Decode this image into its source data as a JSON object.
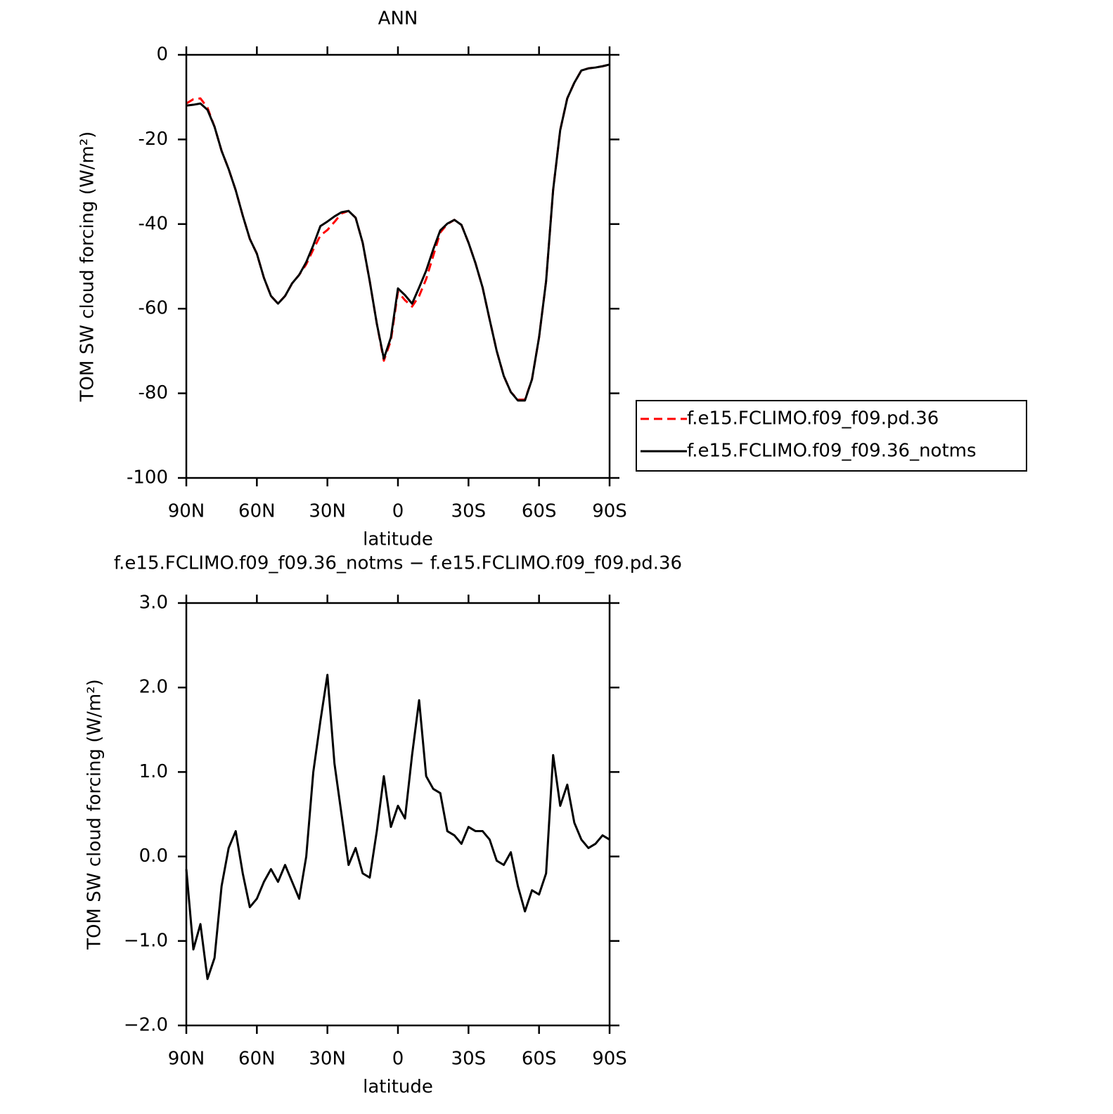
{
  "chart_data": [
    {
      "type": "line",
      "title": "ANN",
      "xlabel": "latitude",
      "ylabel": "TOM SW cloud forcing (W/m²)",
      "x": [
        90,
        87,
        84,
        81,
        78,
        75,
        72,
        69,
        66,
        63,
        60,
        57,
        54,
        51,
        48,
        45,
        42,
        39,
        36,
        33,
        30,
        27,
        24,
        21,
        18,
        15,
        12,
        9,
        6,
        3,
        0,
        -3,
        -6,
        -9,
        -12,
        -15,
        -18,
        -21,
        -24,
        -27,
        -30,
        -33,
        -36,
        -39,
        -42,
        -45,
        -48,
        -51,
        -54,
        -57,
        -60,
        -63,
        -66,
        -69,
        -72,
        -75,
        -78,
        -81,
        -84,
        -87,
        -90
      ],
      "xlim": [
        90,
        -90
      ],
      "xticks": [
        {
          "value": 90,
          "label": "90N"
        },
        {
          "value": 60,
          "label": "60N"
        },
        {
          "value": 30,
          "label": "30N"
        },
        0,
        {
          "value": -30,
          "label": "30S"
        },
        {
          "value": -60,
          "label": "60S"
        },
        {
          "value": -90,
          "label": "90S"
        }
      ],
      "ylim": [
        -100,
        0
      ],
      "yticks": [
        0,
        -20,
        -40,
        -60,
        -80,
        -100
      ],
      "legend": "right",
      "series": [
        {
          "name": "f.e15.FCLIMO.f09_f09.pd.36",
          "color": "#ff0000",
          "linestyle": "dashed",
          "values": [
            -11.5,
            -10.5,
            -10.3,
            -12.5,
            -17,
            -22.7,
            -27,
            -32,
            -38,
            -43.5,
            -47,
            -52.7,
            -57,
            -58.8,
            -57,
            -54,
            -52,
            -49.5,
            -46,
            -42.7,
            -41.4,
            -39.5,
            -37.5,
            -36.9,
            -38.5,
            -44.4,
            -53.5,
            -63.5,
            -72.3,
            -67.5,
            -56,
            -58,
            -59.5,
            -57,
            -53,
            -47.5,
            -42,
            -40,
            -39,
            -40.2,
            -44.4,
            -49.3,
            -55,
            -62.6,
            -70,
            -75.9,
            -79.7,
            -81.5,
            -81.5,
            -76.7,
            -66.8,
            -53.5,
            -31.9,
            -17.8,
            -10.3,
            -6.6,
            -3.7,
            -3.2,
            -3,
            -2.7,
            -2.3
          ]
        },
        {
          "name": "f.e15.FCLIMO.f09_f09.36_notms",
          "color": "#000000",
          "linestyle": "solid",
          "values": [
            -12,
            -11.8,
            -11.5,
            -13,
            -17,
            -22.7,
            -27,
            -32,
            -38,
            -43.5,
            -47,
            -52.7,
            -57,
            -58.8,
            -57,
            -54,
            -52,
            -49,
            -45,
            -40.5,
            -39.4,
            -38.2,
            -37.2,
            -36.9,
            -38.5,
            -44.4,
            -53.5,
            -63.5,
            -71.8,
            -66.8,
            -55.2,
            -56.8,
            -58.8,
            -55,
            -51,
            -46,
            -41.5,
            -39.9,
            -39,
            -40.2,
            -44.4,
            -49.3,
            -55,
            -62.6,
            -70,
            -75.9,
            -79.7,
            -81.7,
            -81.7,
            -76.7,
            -66.8,
            -53.5,
            -31.9,
            -17.8,
            -10.3,
            -6.6,
            -3.7,
            -3.2,
            -3,
            -2.7,
            -2.3
          ]
        }
      ]
    },
    {
      "type": "line",
      "title": "f.e15.FCLIMO.f09_f09.36_notms − f.e15.FCLIMO.f09_f09.pd.36",
      "xlabel": "latitude",
      "ylabel": "TOM SW cloud forcing (W/m²)",
      "x": [
        90,
        87,
        84,
        81,
        78,
        75,
        72,
        69,
        66,
        63,
        60,
        57,
        54,
        51,
        48,
        45,
        42,
        39,
        36,
        33,
        30,
        27,
        24,
        21,
        18,
        15,
        12,
        9,
        6,
        3,
        0,
        -3,
        -6,
        -9,
        -12,
        -15,
        -18,
        -21,
        -24,
        -27,
        -30,
        -33,
        -36,
        -39,
        -42,
        -45,
        -48,
        -51,
        -54,
        -57,
        -60,
        -63,
        -66,
        -69,
        -72,
        -75,
        -78,
        -81,
        -84,
        -87,
        -90
      ],
      "xlim": [
        90,
        -90
      ],
      "xticks": [
        {
          "value": 90,
          "label": "90N"
        },
        {
          "value": 60,
          "label": "60N"
        },
        {
          "value": 30,
          "label": "30N"
        },
        0,
        {
          "value": -30,
          "label": "30S"
        },
        {
          "value": -60,
          "label": "60S"
        },
        {
          "value": -90,
          "label": "90S"
        }
      ],
      "ylim": [
        -2,
        3
      ],
      "yticks": [
        {
          "value": 3,
          "label": "3.0"
        },
        {
          "value": 2,
          "label": "2.0"
        },
        {
          "value": 1,
          "label": "1.0"
        },
        {
          "value": 0,
          "label": "0.0"
        },
        {
          "value": -1,
          "label": "−1.0"
        },
        {
          "value": -2,
          "label": "−2.0"
        }
      ],
      "series": [
        {
          "color": "#000000",
          "linestyle": "solid",
          "values": [
            -0.15,
            -1.1,
            -0.8,
            -1.45,
            -1.2,
            -0.35,
            0.1,
            0.3,
            -0.2,
            -0.6,
            -0.5,
            -0.3,
            -0.15,
            -0.3,
            -0.1,
            -0.3,
            -0.5,
            0,
            1,
            1.6,
            2.15,
            1.1,
            0.5,
            -0.1,
            0.1,
            -0.2,
            -0.25,
            0.3,
            0.95,
            0.35,
            0.6,
            0.45,
            1.2,
            1.85,
            0.95,
            0.8,
            0.75,
            0.3,
            0.25,
            0.15,
            0.35,
            0.3,
            0.3,
            0.2,
            -0.05,
            -0.1,
            0.05,
            -0.35,
            -0.65,
            -0.4,
            -0.45,
            -0.2,
            1.2,
            0.6,
            0.85,
            0.4,
            0.2,
            0.1,
            0.15,
            0.25,
            0.2
          ]
        }
      ]
    }
  ]
}
